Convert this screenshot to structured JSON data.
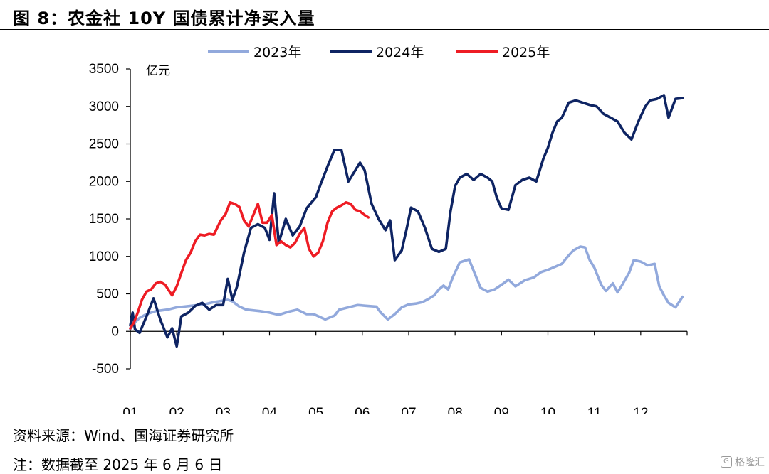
{
  "figure": {
    "title": "图 8：农金社 10Y 国债累计净买入量",
    "source": "资料来源：Wind、国海证券研究所",
    "note": "注：数据截至 2025 年 6 月 6 日",
    "watermark": "格隆汇"
  },
  "chart_data": {
    "type": "line",
    "title": "",
    "xlabel": "",
    "ylabel": "亿元",
    "unit": "亿元",
    "ylim": [
      -500,
      3500
    ],
    "yticks": [
      -500,
      0,
      500,
      1000,
      1500,
      2000,
      2500,
      3000,
      3500
    ],
    "xlim": [
      1,
      13
    ],
    "x_tick_labels": [
      "01",
      "02",
      "03",
      "04",
      "05",
      "06",
      "07",
      "08",
      "09",
      "10",
      "11",
      "12"
    ],
    "legend_position": "top",
    "grid": false,
    "series": [
      {
        "name": "2023年",
        "color": "#92a9dc",
        "x": [
          1.0,
          1.1,
          1.2,
          1.35,
          1.55,
          1.8,
          2.0,
          2.3,
          2.6,
          2.8,
          3.0,
          3.1,
          3.2,
          3.35,
          3.5,
          3.8,
          4.0,
          4.2,
          4.4,
          4.6,
          4.8,
          4.95,
          5.2,
          5.4,
          5.5,
          5.7,
          5.9,
          6.1,
          6.3,
          6.4,
          6.55,
          6.7,
          6.85,
          7.0,
          7.15,
          7.3,
          7.45,
          7.55,
          7.65,
          7.75,
          7.85,
          7.95,
          8.1,
          8.3,
          8.45,
          8.55,
          8.7,
          8.85,
          9.0,
          9.15,
          9.3,
          9.5,
          9.7,
          9.85,
          10.0,
          10.15,
          10.3,
          10.4,
          10.55,
          10.7,
          10.8,
          10.9,
          11.0,
          11.15,
          11.25,
          11.4,
          11.5,
          11.6,
          11.75,
          11.85,
          12.0,
          12.15,
          12.3,
          12.4,
          12.5,
          12.6,
          12.75,
          12.9
        ],
        "values": [
          30,
          120,
          180,
          230,
          270,
          290,
          320,
          340,
          360,
          390,
          410,
          420,
          400,
          330,
          290,
          270,
          250,
          220,
          260,
          290,
          230,
          230,
          160,
          210,
          290,
          320,
          350,
          340,
          330,
          250,
          160,
          230,
          320,
          360,
          370,
          390,
          440,
          480,
          560,
          610,
          560,
          720,
          920,
          960,
          730,
          580,
          530,
          560,
          620,
          690,
          600,
          680,
          720,
          790,
          820,
          860,
          900,
          980,
          1080,
          1130,
          1120,
          950,
          850,
          620,
          540,
          640,
          520,
          620,
          780,
          950,
          930,
          880,
          900,
          600,
          480,
          380,
          320,
          460
        ]
      },
      {
        "name": "2024年",
        "color": "#0e2463",
        "x": [
          1.0,
          1.05,
          1.1,
          1.2,
          1.35,
          1.5,
          1.65,
          1.8,
          1.9,
          2.0,
          2.1,
          2.25,
          2.4,
          2.55,
          2.7,
          2.85,
          3.0,
          3.1,
          3.2,
          3.3,
          3.45,
          3.6,
          3.75,
          3.9,
          4.0,
          4.1,
          4.2,
          4.35,
          4.5,
          4.65,
          4.8,
          5.0,
          5.1,
          5.25,
          5.4,
          5.55,
          5.7,
          5.85,
          5.95,
          6.05,
          6.2,
          6.35,
          6.5,
          6.6,
          6.7,
          6.85,
          6.95,
          7.05,
          7.2,
          7.35,
          7.5,
          7.65,
          7.8,
          7.9,
          8.0,
          8.1,
          8.25,
          8.4,
          8.55,
          8.7,
          8.8,
          8.9,
          9.0,
          9.15,
          9.3,
          9.45,
          9.6,
          9.75,
          9.9,
          10.0,
          10.1,
          10.2,
          10.3,
          10.45,
          10.6,
          10.75,
          10.9,
          11.05,
          11.2,
          11.35,
          11.5,
          11.65,
          11.8,
          11.95,
          12.1,
          12.2,
          12.35,
          12.5,
          12.6,
          12.75,
          12.9
        ],
        "values": [
          80,
          250,
          30,
          -20,
          200,
          440,
          150,
          -80,
          40,
          -200,
          200,
          250,
          340,
          380,
          290,
          350,
          350,
          700,
          420,
          600,
          1050,
          1380,
          1430,
          1380,
          1220,
          1840,
          1180,
          1500,
          1280,
          1400,
          1640,
          1790,
          1960,
          2200,
          2420,
          2420,
          2000,
          2150,
          2250,
          2150,
          1700,
          1500,
          1350,
          1480,
          950,
          1080,
          1350,
          1650,
          1600,
          1380,
          1100,
          1060,
          1100,
          1600,
          1940,
          2050,
          2100,
          2020,
          2100,
          2050,
          2000,
          1780,
          1640,
          1620,
          1950,
          2020,
          2050,
          2000,
          2300,
          2450,
          2650,
          2800,
          2850,
          3050,
          3080,
          3050,
          3020,
          3000,
          2900,
          2850,
          2800,
          2650,
          2560,
          2800,
          3000,
          3080,
          3100,
          3150,
          2850,
          3100,
          3110
        ]
      },
      {
        "name": "2025年",
        "color": "#ee1c24",
        "x": [
          1.0,
          1.08,
          1.16,
          1.25,
          1.35,
          1.45,
          1.55,
          1.65,
          1.75,
          1.9,
          2.0,
          2.1,
          2.2,
          2.3,
          2.4,
          2.5,
          2.6,
          2.7,
          2.8,
          2.95,
          3.05,
          3.15,
          3.25,
          3.35,
          3.45,
          3.55,
          3.65,
          3.75,
          3.85,
          3.95,
          4.05,
          4.15,
          4.25,
          4.35,
          4.45,
          4.55,
          4.65,
          4.75,
          4.85,
          4.95,
          5.05,
          5.15,
          5.25,
          5.35,
          5.45,
          5.55,
          5.65,
          5.75,
          5.85,
          5.95,
          6.05,
          6.13
        ],
        "values": [
          40,
          120,
          250,
          420,
          530,
          560,
          640,
          660,
          620,
          480,
          600,
          780,
          950,
          1050,
          1200,
          1290,
          1280,
          1300,
          1290,
          1480,
          1560,
          1720,
          1700,
          1660,
          1480,
          1400,
          1550,
          1700,
          1450,
          1450,
          1550,
          1150,
          1200,
          1150,
          1120,
          1180,
          1300,
          1380,
          1100,
          1000,
          1050,
          1200,
          1450,
          1600,
          1650,
          1680,
          1720,
          1700,
          1620,
          1600,
          1550,
          1520
        ]
      }
    ]
  }
}
